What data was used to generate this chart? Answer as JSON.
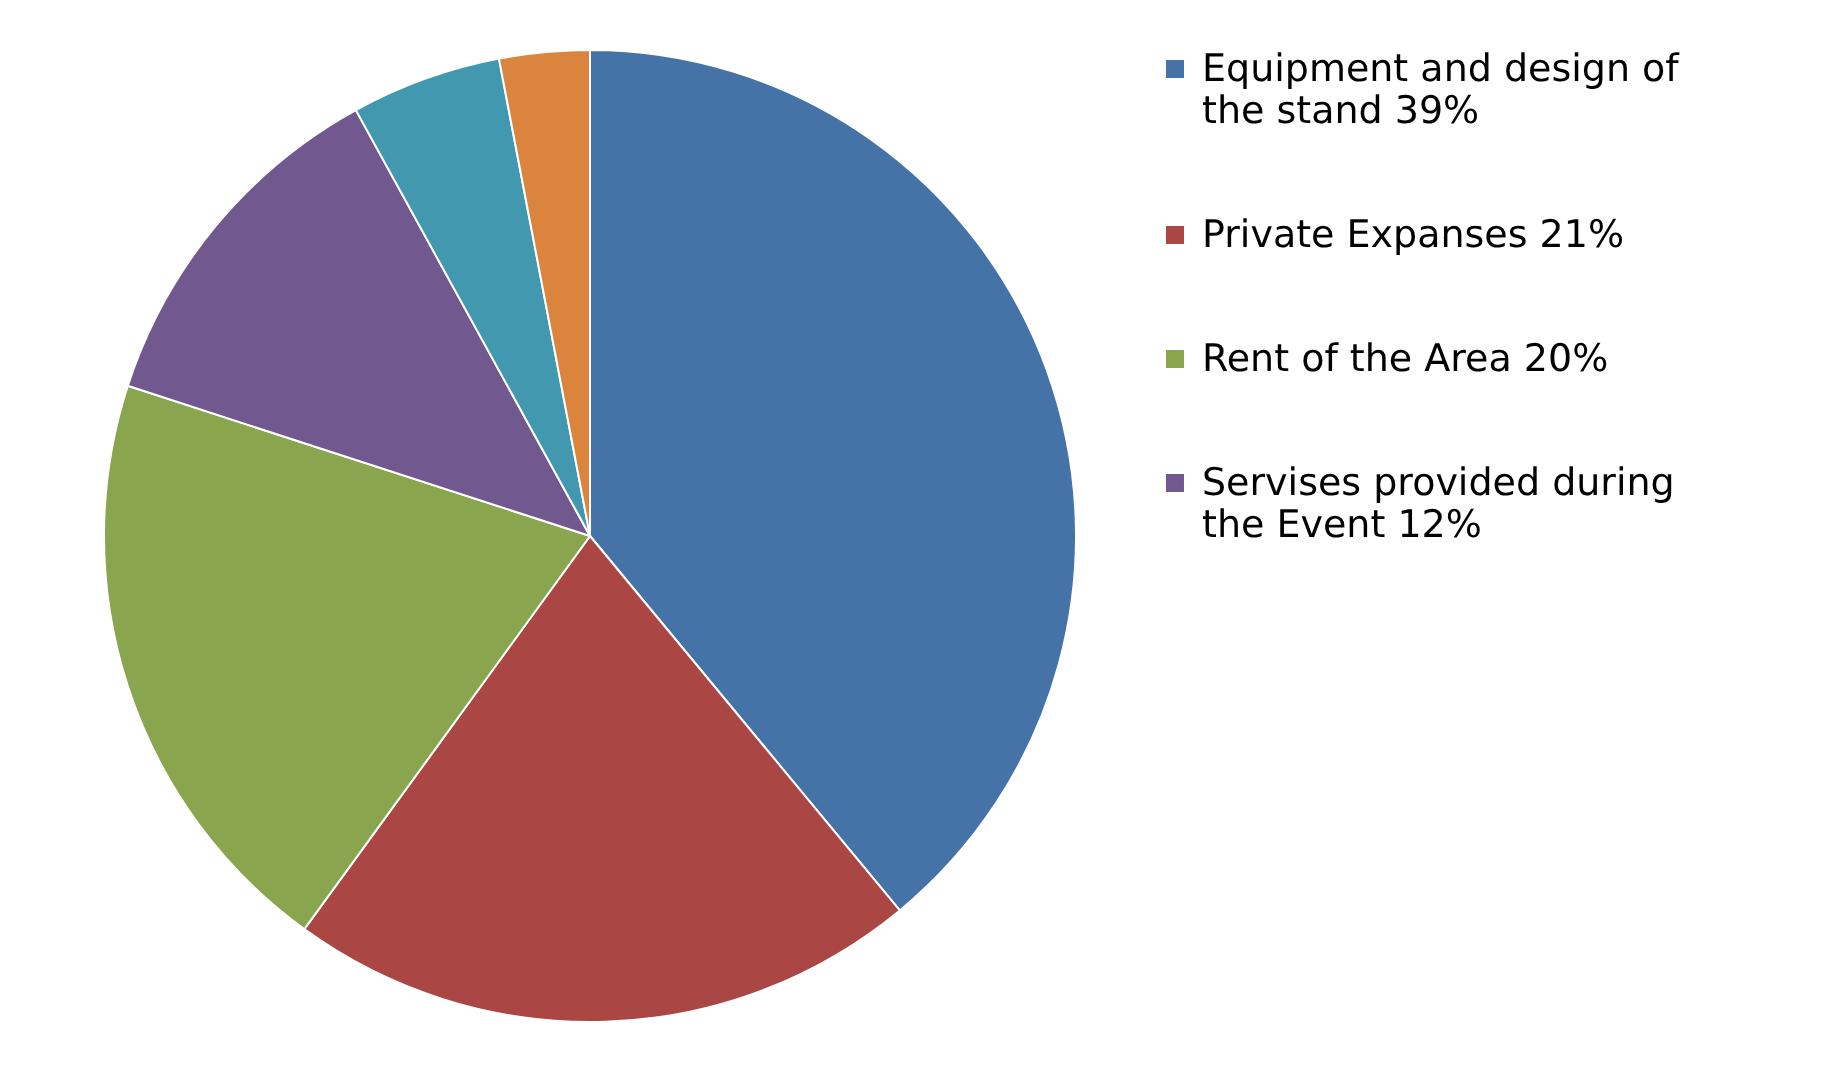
{
  "chart_data": {
    "type": "pie",
    "categories": [
      "Equipment and design of the stand 39%",
      "Private Expanses 21%",
      "Rent of the Area 20%",
      "Servises provided during the Event 12%",
      null,
      null
    ],
    "values": [
      39,
      21,
      20,
      12,
      5,
      3
    ],
    "colors": [
      "#4572a7",
      "#aa4643",
      "#89a54e",
      "#71588f",
      "#4198af",
      "#db843d"
    ],
    "legend": "right"
  }
}
